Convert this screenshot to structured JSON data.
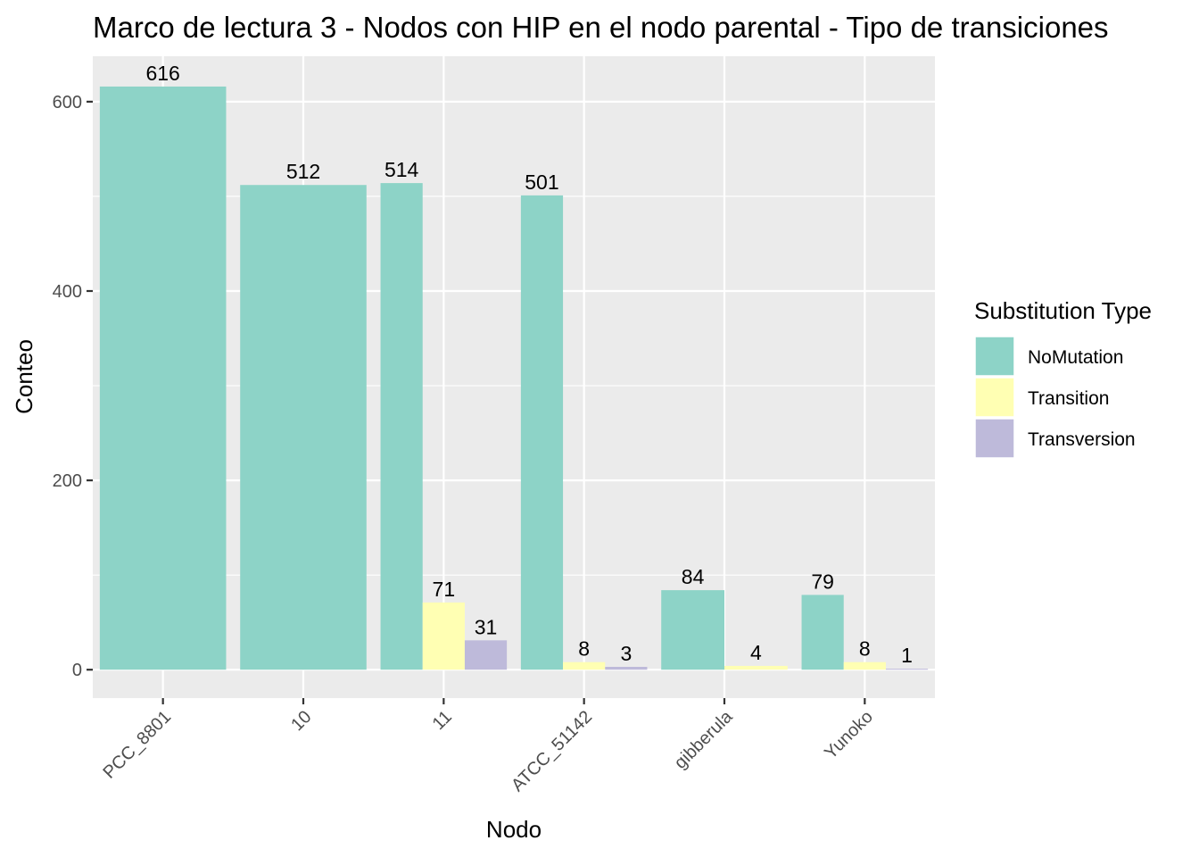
{
  "chart_data": {
    "type": "bar",
    "title": "Marco de lectura 3 - Nodos con HIP en el nodo parental - Tipo de transiciones",
    "xlabel": "Nodo",
    "ylabel": "Conteo",
    "ylim": [
      -30,
      648
    ],
    "yticks": [
      0,
      200,
      400,
      600
    ],
    "grid": true,
    "legend": {
      "title": "Substitution Type",
      "position": "right"
    },
    "categories": [
      "PCC_8801",
      "10",
      "11",
      "ATCC_51142",
      "gibberula",
      "Yunoko"
    ],
    "series": [
      {
        "name": "NoMutation",
        "color": "#8dd3c7",
        "values": [
          616,
          512,
          514,
          501,
          84,
          79
        ]
      },
      {
        "name": "Transition",
        "color": "#ffffb3",
        "values": [
          null,
          null,
          71,
          8,
          4,
          8
        ]
      },
      {
        "name": "Transversion",
        "color": "#bebada",
        "values": [
          null,
          null,
          31,
          3,
          null,
          1
        ]
      }
    ],
    "data_labels": [
      {
        "category": "PCC_8801",
        "series": "NoMutation",
        "value": 616,
        "text": "616"
      },
      {
        "category": "10",
        "series": "NoMutation",
        "value": 512,
        "text": "512"
      },
      {
        "category": "11",
        "series": "NoMutation",
        "value": 514,
        "text": "514"
      },
      {
        "category": "11",
        "series": "Transition",
        "value": 71,
        "text": "71"
      },
      {
        "category": "11",
        "series": "Transversion",
        "value": 31,
        "text": "31"
      },
      {
        "category": "ATCC_51142",
        "series": "NoMutation",
        "value": 501,
        "text": "501"
      },
      {
        "category": "ATCC_51142",
        "series": "Transition",
        "value": 8,
        "text": "8"
      },
      {
        "category": "ATCC_51142",
        "series": "Transversion",
        "value": 3,
        "text": "3"
      },
      {
        "category": "gibberula",
        "series": "NoMutation",
        "value": 84,
        "text": "84"
      },
      {
        "category": "gibberula",
        "series": "Transition",
        "value": 4,
        "text": "4"
      },
      {
        "category": "Yunoko",
        "series": "NoMutation",
        "value": 79,
        "text": "79"
      },
      {
        "category": "Yunoko",
        "series": "Transition",
        "value": 8,
        "text": "8"
      },
      {
        "category": "Yunoko",
        "series": "Transversion",
        "value": 1,
        "text": "1"
      }
    ],
    "colors": {
      "panel_background": "#ebebeb",
      "grid": "#ffffff",
      "tick": "#333333"
    }
  }
}
